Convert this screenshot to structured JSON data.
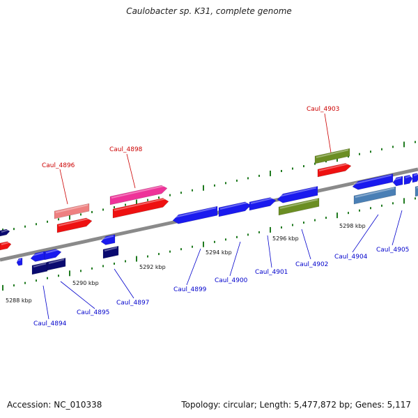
{
  "title": "Caulobacter sp. K31, complete genome",
  "footer": {
    "accession": "Accession: NC_010338",
    "summary": "Topology: circular; Length: 5,477,872 bp; Genes: 5,117"
  },
  "colors": {
    "backbone": "#8a8a8a",
    "tick": "#1f7a1f",
    "label_red": "#cc0000",
    "label_blue": "#0000cc",
    "gene_red": "#ee1111",
    "gene_pink": "#ee3399",
    "gene_lightred": "#ee8080",
    "gene_blue": "#1a1aee",
    "gene_navy": "#0a0a70",
    "gene_olive": "#6b8e23",
    "gene_steel": "#4a7fb5"
  },
  "ticks": [
    {
      "label": "5288 kbp"
    },
    {
      "label": "5290 kbp"
    },
    {
      "label": "5292 kbp"
    },
    {
      "label": "5294 kbp"
    },
    {
      "label": "5296 kbp"
    },
    {
      "label": "5298 kbp"
    }
  ],
  "gene_labels_top": [
    {
      "id": "Caul_4896"
    },
    {
      "id": "Caul_4898"
    },
    {
      "id": "Caul_4903"
    }
  ],
  "gene_labels_bottom": [
    {
      "id": "Caul_4894"
    },
    {
      "id": "Caul_4895"
    },
    {
      "id": "Caul_4897"
    },
    {
      "id": "Caul_4899"
    },
    {
      "id": "Caul_4900"
    },
    {
      "id": "Caul_4901"
    },
    {
      "id": "Caul_4902"
    },
    {
      "id": "Caul_4904"
    },
    {
      "id": "Caul_4905"
    }
  ]
}
